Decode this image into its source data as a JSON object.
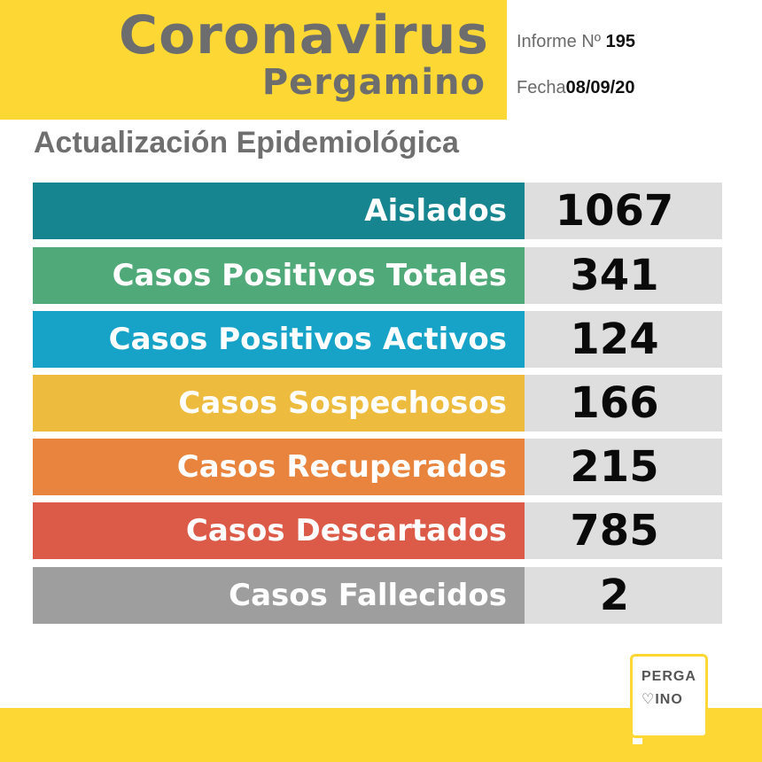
{
  "header": {
    "title": "Coronavirus",
    "subtitle": "Pergamino",
    "informe_label": "Informe Nº",
    "informe_value": "195",
    "fecha_label": "Fecha",
    "fecha_value": "08/09/20",
    "color": "#fdd835"
  },
  "section_title": "Actualización Epidemiológica",
  "rows": [
    {
      "label": "Aislados",
      "value": "1067",
      "color": "#16858f"
    },
    {
      "label": "Casos Positivos Totales",
      "value": "341",
      "color": "#4fa978"
    },
    {
      "label": "Casos Positivos Activos",
      "value": "124",
      "color": "#17a3c8"
    },
    {
      "label": "Casos Sospechosos",
      "value": "166",
      "color": "#edbc3e"
    },
    {
      "label": "Casos Recuperados",
      "value": "215",
      "color": "#e8843d"
    },
    {
      "label": "Casos Descartados",
      "value": "785",
      "color": "#dc5a48"
    },
    {
      "label": "Casos Fallecidos",
      "value": "2",
      "color": "#9e9e9e"
    }
  ],
  "logo": {
    "line1": "PERGA",
    "line2": "♡INO"
  }
}
